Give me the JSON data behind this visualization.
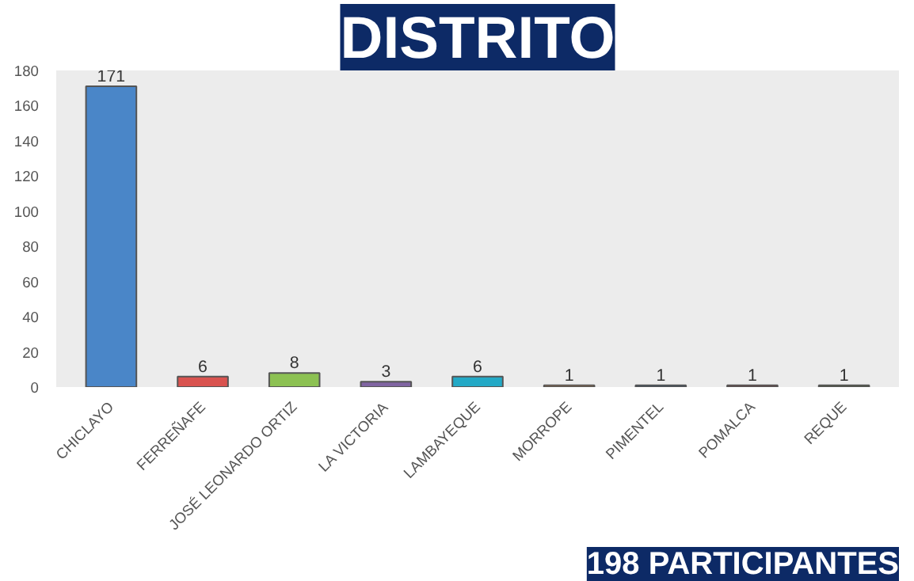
{
  "chart_data": {
    "type": "bar",
    "title": "DISTRITO",
    "categories": [
      "CHICLAYO",
      "FERREÑAFE",
      "JOSÉ LEONARDO ORTIZ",
      "LA VICTORIA",
      "LAMBAYEQUE",
      "MORROPE",
      "PIMENTEL",
      "POMALCA",
      "REQUE"
    ],
    "values": [
      171,
      6,
      8,
      3,
      6,
      1,
      1,
      1,
      1
    ],
    "colors": [
      "#4a86c8",
      "#d9534f",
      "#8cc152",
      "#8064a2",
      "#23a9c6",
      "#f79646",
      "#1f4e79",
      "#953735",
      "#4f6228"
    ],
    "ylim": [
      0,
      180
    ],
    "yticks": [
      0,
      20,
      40,
      60,
      80,
      100,
      120,
      140,
      160,
      180
    ],
    "data_labels": true,
    "annotations": [
      "198 PARTICIPANTES"
    ]
  }
}
